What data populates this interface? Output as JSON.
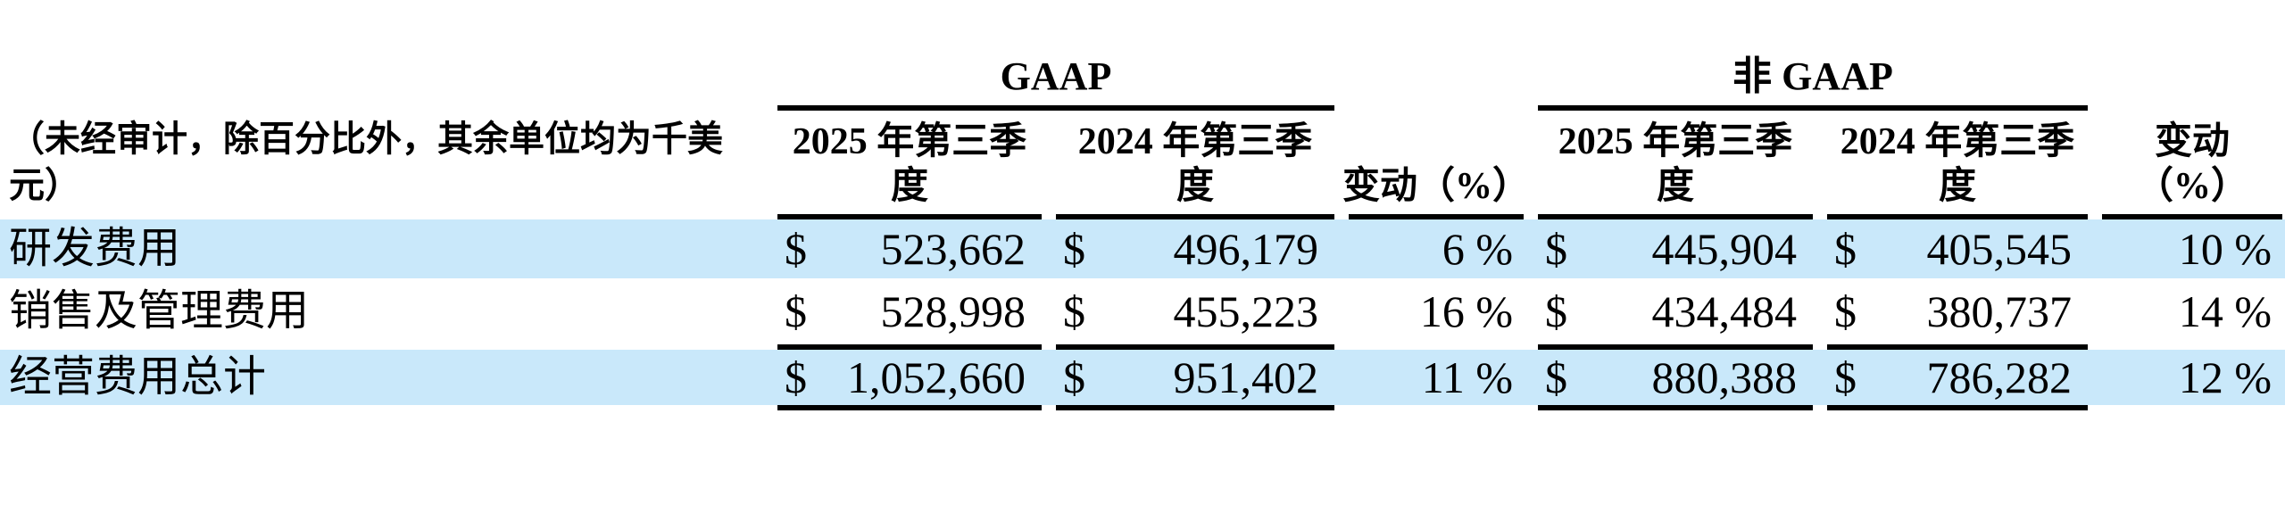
{
  "table": {
    "unit_note": "（未经审计，除百分比外，其余单位均为千美元）",
    "group_headers": {
      "gaap": "GAAP",
      "non_gaap": "非 GAAP"
    },
    "column_headers": {
      "q3_2025": "2025 年第三季度",
      "q3_2024": "2024 年第三季度",
      "change": "变动（%）",
      "change_two_line": "变动\n（%）"
    },
    "currency_symbol": "$",
    "rows": [
      {
        "label": "研发费用",
        "gaap_q3_2025": "523,662",
        "gaap_q3_2024": "496,179",
        "gaap_change": "6 %",
        "non_gaap_q3_2025": "445,904",
        "non_gaap_q3_2024": "405,545",
        "non_gaap_change": "10 %"
      },
      {
        "label": "销售及管理费用",
        "gaap_q3_2025": "528,998",
        "gaap_q3_2024": "455,223",
        "gaap_change": "16 %",
        "non_gaap_q3_2025": "434,484",
        "non_gaap_q3_2024": "380,737",
        "non_gaap_change": "14 %"
      },
      {
        "label": "经营费用总计",
        "gaap_q3_2025": "1,052,660",
        "gaap_q3_2024": "951,402",
        "gaap_change": "11 %",
        "non_gaap_q3_2025": "880,388",
        "non_gaap_q3_2024": "786,282",
        "non_gaap_change": "12 %"
      }
    ],
    "colors": {
      "row_highlight": "#c9e8fa",
      "rule": "#000000"
    }
  }
}
